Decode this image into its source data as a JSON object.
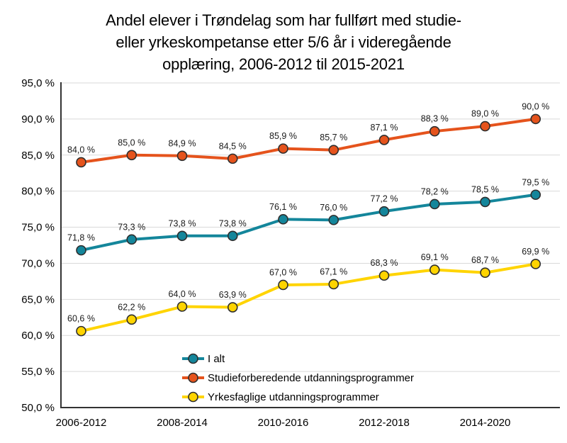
{
  "title_lines": [
    "Andel elever i Trøndelag som har fullført med studie-",
    "eller yrkeskompetanse etter 5/6 år i videregående",
    "opplæring, 2006-2012 til 2015-2021"
  ],
  "chart_data": {
    "type": "line",
    "title": "Andel elever i Trøndelag som har fullført med studie- eller yrkeskompetanse etter 5/6 år i videregående opplæring, 2006-2012 til 2015-2021",
    "n_points": 10,
    "x_tick_labels": [
      "2006-2012",
      "2008-2014",
      "2010-2016",
      "2012-2018",
      "2014-2020"
    ],
    "x_tick_positions": [
      0,
      2,
      4,
      6,
      8
    ],
    "ylim": [
      50,
      95
    ],
    "y_tick_step": 5,
    "y_tick_format": "nn,0 %",
    "grid": "horizontal",
    "legend_position": "inside-bottom-center",
    "data_labels": "above-points, comma decimal, suffix ' %'",
    "series": [
      {
        "name": "I alt",
        "color": "#14869B",
        "values": [
          71.8,
          73.3,
          73.8,
          73.8,
          76.1,
          76.0,
          77.2,
          78.2,
          78.5,
          79.5
        ]
      },
      {
        "name": "Studieforberedende utdanningsprogrammer",
        "color": "#E5531C",
        "values": [
          84.0,
          85.0,
          84.9,
          84.5,
          85.9,
          85.7,
          87.1,
          88.3,
          89.0,
          90.0
        ]
      },
      {
        "name": "Yrkesfaglige utdanningsprogrammer",
        "color": "#FFD400",
        "values": [
          60.6,
          62.2,
          64.0,
          63.9,
          67.0,
          67.1,
          68.3,
          69.1,
          68.7,
          69.9
        ]
      }
    ],
    "colors": {
      "grid": "#D9D9D9",
      "axis": "#333333",
      "marker_outline": "#2E2E2E",
      "text": "#000000"
    }
  }
}
